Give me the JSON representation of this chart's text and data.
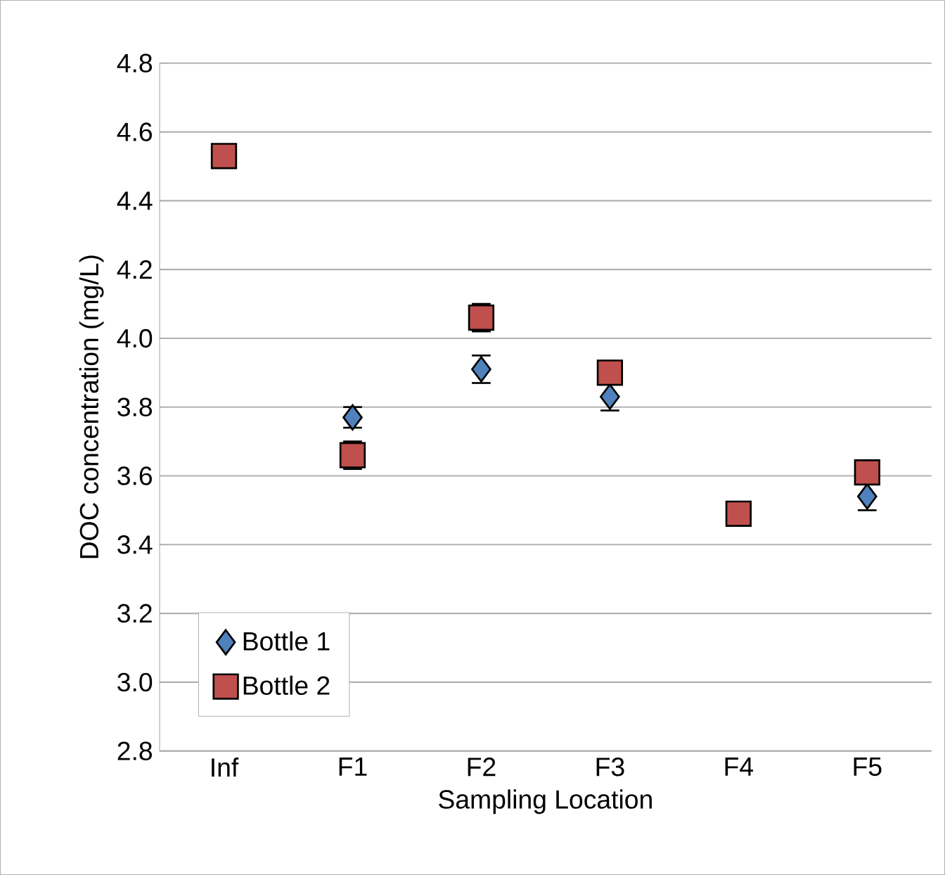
{
  "chart_data": {
    "type": "scatter",
    "xlabel": "Sampling Location",
    "ylabel": "DOC concentration (mg/L)",
    "categories": [
      "Inf",
      "F1",
      "F2",
      "F3",
      "F4",
      "F5"
    ],
    "series": [
      {
        "name": "Bottle 1",
        "color": "#4f81bd",
        "marker": "diamond",
        "values": [
          null,
          3.77,
          3.91,
          3.83,
          null,
          3.54
        ],
        "errors": [
          null,
          0.03,
          0.04,
          0.04,
          null,
          0.04
        ]
      },
      {
        "name": "Bottle 2",
        "color": "#c0504d",
        "marker": "square",
        "values": [
          4.53,
          3.66,
          4.06,
          3.9,
          3.49,
          3.61
        ],
        "errors": [
          null,
          0.04,
          0.04,
          null,
          null,
          null
        ]
      }
    ],
    "ylim": [
      2.8,
      4.8
    ],
    "yticks": [
      2.8,
      {
        "value": 3,
        "label": "3.0"
      },
      3.2,
      3.4,
      3.6,
      3.8,
      {
        "value": 4,
        "label": "4.0"
      },
      4.2,
      4.4,
      4.6,
      4.8
    ],
    "grid": "y",
    "legend": "bottom left"
  }
}
